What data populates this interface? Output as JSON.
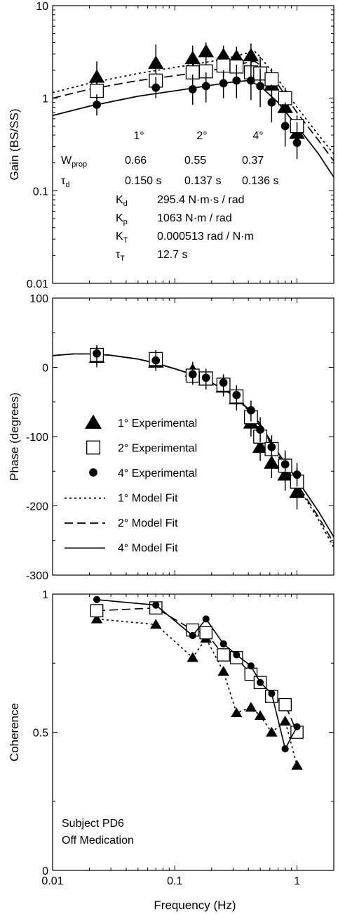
{
  "x_axis": {
    "label": "Frequency (Hz)",
    "scale": "log",
    "range": [
      0.01,
      2
    ],
    "ticks": [
      0.01,
      0.1,
      1
    ],
    "tick_labels": [
      "0.01",
      "0.1",
      "1"
    ]
  },
  "chart_data": [
    {
      "type": "scatter",
      "panel": "gain",
      "ylabel": "Gain (BS/SS)",
      "yscale": "log",
      "ylim": [
        0.01,
        10
      ],
      "yticks": [
        0.01,
        0.1,
        1,
        10
      ],
      "ytick_labels": [
        "0.01",
        "0.1",
        "1",
        "10"
      ],
      "x": [
        0.023,
        0.07,
        0.14,
        0.18,
        0.25,
        0.32,
        0.42,
        0.5,
        0.62,
        0.8,
        1.0
      ],
      "series": [
        {
          "name": "1° Experimental",
          "marker": "triangle",
          "y": [
            1.7,
            2.4,
            2.7,
            3.2,
            2.9,
            2.8,
            2.9,
            1.9,
            1.4,
            0.8,
            0.42
          ],
          "err_up": [
            2.5,
            3.8,
            3.7,
            4.0,
            3.7,
            3.6,
            3.9,
            2.8,
            2.0,
            1.1,
            0.6
          ],
          "err_down": [
            1.2,
            1.6,
            2.0,
            2.4,
            2.2,
            2.1,
            2.1,
            1.4,
            0.9,
            0.55,
            0.3
          ]
        },
        {
          "name": "2° Experimental",
          "marker": "square",
          "y": [
            1.2,
            1.55,
            1.9,
            1.95,
            2.25,
            2.2,
            1.9,
            1.85,
            1.6,
            1.0,
            0.5
          ],
          "err_up": [
            1.6,
            2.0,
            2.5,
            2.6,
            3.0,
            3.0,
            2.5,
            2.4,
            2.1,
            1.3,
            0.65
          ],
          "err_down": [
            0.9,
            1.2,
            1.5,
            1.5,
            1.7,
            1.6,
            1.5,
            1.4,
            1.2,
            0.75,
            0.38
          ]
        },
        {
          "name": "4° Experimental",
          "marker": "dot",
          "y": [
            0.85,
            1.3,
            1.25,
            1.35,
            1.45,
            1.55,
            1.55,
            1.35,
            0.9,
            0.5,
            0.33
          ],
          "err_up": [
            1.1,
            1.7,
            1.8,
            1.9,
            2.0,
            2.3,
            2.4,
            2.1,
            1.4,
            0.9,
            0.55
          ],
          "err_down": [
            0.65,
            1.0,
            0.85,
            0.9,
            1.0,
            1.0,
            0.95,
            0.8,
            0.55,
            0.3,
            0.22
          ]
        }
      ],
      "model_fits": [
        {
          "name": "1° Model Fit",
          "style": "dotted",
          "x": [
            0.01,
            0.02,
            0.05,
            0.1,
            0.2,
            0.3,
            0.4,
            0.45,
            0.5,
            0.7,
            1.0,
            1.5,
            2.0
          ],
          "y": [
            1.15,
            1.45,
            1.85,
            2.15,
            2.5,
            2.8,
            3.1,
            3.2,
            2.8,
            1.6,
            0.8,
            0.4,
            0.25
          ]
        },
        {
          "name": "2° Model Fit",
          "style": "dashed",
          "x": [
            0.01,
            0.02,
            0.05,
            0.1,
            0.2,
            0.3,
            0.4,
            0.45,
            0.5,
            0.7,
            1.0,
            1.5,
            2.0
          ],
          "y": [
            1.0,
            1.25,
            1.55,
            1.75,
            2.0,
            2.2,
            2.45,
            2.5,
            2.3,
            1.4,
            0.7,
            0.35,
            0.21
          ]
        },
        {
          "name": "4° Model Fit",
          "style": "solid",
          "x": [
            0.01,
            0.02,
            0.05,
            0.1,
            0.2,
            0.3,
            0.4,
            0.5,
            0.7,
            1.0,
            1.5,
            2.0
          ],
          "y": [
            0.65,
            0.82,
            1.05,
            1.2,
            1.38,
            1.5,
            1.55,
            1.35,
            0.9,
            0.5,
            0.25,
            0.14
          ]
        }
      ],
      "annotations": {
        "column_headers": [
          "1°",
          "2°",
          "4°"
        ],
        "rows": [
          {
            "label": "W",
            "label_sub": "prop",
            "values": [
              "0.66",
              "0.55",
              "0.37"
            ]
          },
          {
            "label": "τ",
            "label_sub": "d",
            "values": [
              "0.150 s",
              "0.137 s",
              "0.136 s"
            ]
          }
        ],
        "params": [
          {
            "label": "K",
            "label_sub": "d",
            "value": "295.4 N·m·s / rad"
          },
          {
            "label": "K",
            "label_sub": "p",
            "value": "1063  N·m / rad"
          },
          {
            "label": "K",
            "label_sub": "T",
            "value": "0.000513 rad / N·m"
          },
          {
            "label": "τ",
            "label_sub": "T",
            "value": "12.7 s"
          }
        ]
      }
    },
    {
      "type": "scatter",
      "panel": "phase",
      "ylabel": "Phase (degrees)",
      "yscale": "linear",
      "ylim": [
        -300,
        100
      ],
      "yticks": [
        -300,
        -200,
        -100,
        0,
        100
      ],
      "ytick_labels": [
        "-300",
        "-200",
        "-100",
        "0",
        "100"
      ],
      "x": [
        0.023,
        0.07,
        0.14,
        0.18,
        0.25,
        0.32,
        0.42,
        0.5,
        0.62,
        0.8,
        1.0
      ],
      "series": [
        {
          "name": "1° Experimental",
          "marker": "triangle",
          "y": [
            15,
            8,
            -5,
            -18,
            -28,
            -45,
            -80,
            -115,
            -138,
            -155,
            -180
          ],
          "err_up": [
            28,
            20,
            8,
            -5,
            -15,
            -30,
            -62,
            -95,
            -115,
            -130,
            -155
          ],
          "err_down": [
            0,
            -5,
            -18,
            -32,
            -42,
            -62,
            -100,
            -135,
            -160,
            -178,
            -205
          ]
        },
        {
          "name": "2° Experimental",
          "marker": "square",
          "y": [
            18,
            12,
            -12,
            -16,
            -25,
            -42,
            -72,
            -100,
            -118,
            -142,
            -165
          ],
          "err_up": [
            30,
            25,
            2,
            -3,
            -12,
            -28,
            -55,
            -82,
            -100,
            -124,
            -145
          ],
          "err_down": [
            5,
            -2,
            -25,
            -30,
            -38,
            -56,
            -90,
            -118,
            -136,
            -160,
            -185
          ]
        },
        {
          "name": "4° Experimental",
          "marker": "dot",
          "y": [
            20,
            10,
            -10,
            -15,
            -22,
            -40,
            -62,
            -90,
            -115,
            -140,
            -155
          ],
          "err_up": [
            32,
            22,
            3,
            -2,
            -10,
            -26,
            -48,
            -72,
            -98,
            -120,
            -138
          ],
          "err_down": [
            8,
            -2,
            -22,
            -28,
            -35,
            -54,
            -78,
            -108,
            -132,
            -160,
            -172
          ]
        }
      ],
      "model_fits": [
        {
          "name": "1° Model Fit",
          "style": "dotted",
          "x": [
            0.01,
            0.015,
            0.02,
            0.03,
            0.05,
            0.07,
            0.1,
            0.15,
            0.2,
            0.3,
            0.4,
            0.5,
            0.7,
            1.0,
            1.5,
            2.0
          ],
          "y": [
            17,
            19.5,
            19.5,
            17.5,
            12,
            6,
            -2,
            -12,
            -22,
            -40,
            -62,
            -85,
            -128,
            -170,
            -220,
            -260
          ]
        },
        {
          "name": "2° Model Fit",
          "style": "dashed",
          "x": [
            0.01,
            0.015,
            0.02,
            0.03,
            0.05,
            0.07,
            0.1,
            0.15,
            0.2,
            0.3,
            0.4,
            0.5,
            0.7,
            1.0,
            1.5,
            2.0
          ],
          "y": [
            17,
            19.5,
            19.5,
            17.5,
            12,
            6,
            -2,
            -12,
            -22,
            -40,
            -61,
            -84,
            -126,
            -168,
            -216,
            -254
          ]
        },
        {
          "name": "4° Model Fit",
          "style": "solid",
          "x": [
            0.01,
            0.015,
            0.02,
            0.03,
            0.05,
            0.07,
            0.1,
            0.15,
            0.2,
            0.3,
            0.4,
            0.5,
            0.7,
            1.0,
            1.5,
            2.0
          ],
          "y": [
            17,
            19.5,
            19.5,
            17.5,
            12,
            6,
            -2,
            -12,
            -22,
            -40,
            -60,
            -82,
            -123,
            -162,
            -208,
            -245
          ]
        }
      ],
      "legend": {
        "placement": "lower-left",
        "entries": [
          {
            "label": "1° Experimental",
            "kind": "marker",
            "marker": "triangle"
          },
          {
            "label": "2° Experimental",
            "kind": "marker",
            "marker": "square"
          },
          {
            "label": "4° Experimental",
            "kind": "marker",
            "marker": "dot"
          },
          {
            "label": "1° Model Fit",
            "kind": "line",
            "style": "dotted"
          },
          {
            "label": "2° Model Fit",
            "kind": "line",
            "style": "dashed"
          },
          {
            "label": "4° Model Fit",
            "kind": "line",
            "style": "solid"
          }
        ]
      }
    },
    {
      "type": "line",
      "panel": "coherence",
      "ylabel": "Coherence",
      "yscale": "linear",
      "ylim": [
        0,
        1
      ],
      "yticks": [
        0,
        0.5,
        1
      ],
      "ytick_labels": [
        "0",
        "0.5",
        "1"
      ],
      "x": [
        0.023,
        0.07,
        0.14,
        0.18,
        0.25,
        0.32,
        0.42,
        0.5,
        0.62,
        0.8,
        1.0
      ],
      "series": [
        {
          "name": "1°",
          "marker": "triangle",
          "style": "dotted",
          "y": [
            0.91,
            0.89,
            0.77,
            0.84,
            0.72,
            0.57,
            0.59,
            0.56,
            0.5,
            0.54,
            0.38
          ]
        },
        {
          "name": "2°",
          "marker": "square",
          "style": "dashed",
          "y": [
            0.94,
            0.95,
            0.87,
            0.86,
            0.78,
            0.77,
            0.71,
            0.68,
            0.63,
            0.6,
            0.5
          ]
        },
        {
          "name": "4°",
          "marker": "dot",
          "style": "solid",
          "y": [
            0.98,
            0.96,
            0.85,
            0.91,
            0.82,
            0.78,
            0.74,
            0.68,
            0.64,
            0.44,
            0.52
          ]
        }
      ],
      "annotation_lines": [
        "Subject PD6",
        "Off Medication"
      ]
    }
  ]
}
